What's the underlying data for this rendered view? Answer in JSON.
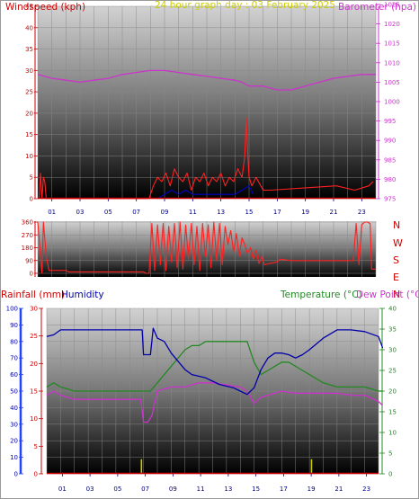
{
  "colors": {
    "wind": "#cc0000",
    "wind_gust": "#ff2020",
    "wind_avg": "#0000cc",
    "baro": "#cc33cc",
    "title": "#cccc00",
    "rain": "#cc0000",
    "humidity": "#0000aa",
    "temp": "#228822",
    "dew": "#cc33cc",
    "winddir": "#ff2020",
    "rain_bar": "#cccc00",
    "grid": "#888888",
    "axis_hum": "#2244ff"
  },
  "chart_data": [
    {
      "id": "wind_baro",
      "type": "line",
      "title": "24 hour graph day : 03 February 2025",
      "left_label": "Windspeed (kph)",
      "right_label": "Barometer (hpa)",
      "left_ticks": [
        "0",
        "5",
        "10",
        "15",
        "20",
        "25",
        "30",
        "35",
        "40",
        "45"
      ],
      "left_range": [
        0,
        45
      ],
      "right_ticks": [
        "975",
        "980",
        "985",
        "990",
        "995",
        "1000",
        "1005",
        "1010",
        "1015",
        "1020",
        "1025"
      ],
      "right_range": [
        975,
        1025
      ],
      "x_ticks": [
        "01",
        "03",
        "05",
        "07",
        "09",
        "11",
        "13",
        "15",
        "17",
        "19",
        "21",
        "23"
      ],
      "x_range": [
        0,
        24
      ],
      "grid": true,
      "series": [
        {
          "role": "barometer",
          "axis": "right",
          "x": [
            0,
            1,
            2,
            3,
            4,
            5,
            6,
            7,
            8,
            9,
            10,
            11,
            12,
            13,
            14,
            14.5,
            15,
            16,
            17,
            18,
            19,
            20,
            21,
            22,
            23,
            24
          ],
          "y": [
            1007,
            1006,
            1005.5,
            1005,
            1005.5,
            1006,
            1007,
            1007.5,
            1008,
            1008,
            1007.5,
            1007,
            1006.5,
            1006,
            1005.5,
            1005,
            1004,
            1004,
            1003,
            1003,
            1004,
            1005,
            1006,
            1006.5,
            1007,
            1007
          ]
        },
        {
          "role": "gust",
          "axis": "left",
          "x": [
            0.1,
            0.2,
            0.3,
            0.4,
            0.5,
            0.6,
            7.9,
            8.2,
            8.5,
            8.8,
            9.1,
            9.4,
            9.7,
            10,
            10.3,
            10.6,
            10.9,
            11.2,
            11.5,
            11.8,
            12.1,
            12.4,
            12.7,
            13,
            13.3,
            13.6,
            13.9,
            14.2,
            14.5,
            14.7,
            14.8,
            14.9,
            15.0,
            15.2,
            15.5,
            16,
            16.5,
            21.2,
            22.5,
            23.5,
            23.8
          ],
          "y": [
            0,
            6,
            0,
            5,
            4,
            0,
            0,
            3,
            5,
            4,
            6,
            3,
            7,
            5,
            4,
            6,
            2,
            5,
            4,
            6,
            3,
            5,
            4,
            6,
            3,
            5,
            4,
            7,
            5,
            10,
            19,
            11,
            5,
            3,
            5,
            2,
            2,
            3,
            2,
            3,
            4
          ]
        },
        {
          "role": "average",
          "axis": "left",
          "x": [
            8.5,
            9,
            9.5,
            10,
            10.5,
            11,
            14,
            14.5,
            15,
            15.3
          ],
          "y": [
            0,
            1,
            2,
            1,
            2,
            1,
            1,
            2,
            3,
            1
          ]
        }
      ]
    },
    {
      "id": "wind_dir",
      "type": "line",
      "left_ticks": [
        "0",
        "90",
        "180",
        "270",
        "360"
      ],
      "left_range": [
        0,
        360
      ],
      "direction_labels": [
        "N",
        "W",
        "S",
        "E",
        "N"
      ],
      "x_range": [
        0,
        24
      ],
      "grid": true,
      "series": [
        {
          "role": "direction",
          "x": [
            0,
            0.3,
            0.4,
            0.6,
            0.8,
            1,
            2,
            2.2,
            4,
            6,
            7,
            7.4,
            7.5,
            7.7,
            7.9,
            8.1,
            8.3,
            8.5,
            8.7,
            8.9,
            9.1,
            9.3,
            9.5,
            9.7,
            9.9,
            10.1,
            10.3,
            10.5,
            10.7,
            10.9,
            11.1,
            11.3,
            11.5,
            11.7,
            11.9,
            12.1,
            12.3,
            12.5,
            12.7,
            12.9,
            13.1,
            13.3,
            13.5,
            13.7,
            13.9,
            14.1,
            14.3,
            14.5,
            14.7,
            14.9,
            15.1,
            15.3,
            15.5,
            15.7,
            15.9,
            16.1,
            16.5,
            17,
            17.2,
            18,
            20,
            22,
            22.4,
            22.6,
            22.8,
            23,
            23.2,
            23.4,
            23.6,
            23.7,
            24
          ],
          "y": [
            360,
            0,
            360,
            120,
            20,
            20,
            20,
            10,
            10,
            10,
            10,
            10,
            10,
            0,
            0,
            350,
            20,
            340,
            60,
            350,
            20,
            330,
            80,
            350,
            40,
            360,
            30,
            340,
            100,
            350,
            60,
            330,
            20,
            350,
            120,
            340,
            40,
            360,
            90,
            350,
            60,
            330,
            200,
            300,
            150,
            280,
            120,
            250,
            200,
            140,
            180,
            100,
            160,
            70,
            120,
            60,
            70,
            80,
            100,
            90,
            90,
            90,
            90,
            350,
            60,
            340,
            360,
            360,
            350,
            30,
            30
          ]
        }
      ]
    },
    {
      "id": "rain_hum_temp",
      "type": "line",
      "left_label": "Rainfall (mm)",
      "hum_label": "Humidity",
      "right_label_temp": "Temperature (°C)",
      "right_label_dew": "Dew Point (°C)",
      "rain_ticks": [
        "0",
        "5",
        "10",
        "15",
        "20",
        "25",
        "30"
      ],
      "rain_range": [
        0,
        30
      ],
      "hum_ticks": [
        "0",
        "10",
        "20",
        "30",
        "40",
        "50",
        "60",
        "70",
        "80",
        "90",
        "100"
      ],
      "hum_range": [
        0,
        100
      ],
      "temp_ticks": [
        "0",
        "5",
        "10",
        "15",
        "20",
        "25",
        "30",
        "35",
        "40"
      ],
      "temp_range": [
        0,
        40
      ],
      "x_ticks": [
        "01",
        "03",
        "05",
        "07",
        "09",
        "11",
        "13",
        "15",
        "17",
        "19",
        "21",
        "23"
      ],
      "x_range": [
        0,
        24
      ],
      "grid": true,
      "series": [
        {
          "role": "humidity",
          "axis": "hum",
          "x": [
            0,
            0.5,
            1,
            2,
            3,
            4,
            5,
            6,
            6.9,
            7.0,
            7.5,
            7.7,
            8,
            8.5,
            9,
            9.5,
            10,
            10.5,
            11,
            11.5,
            12,
            12.5,
            13,
            13.5,
            14,
            14.5,
            15,
            15.5,
            16,
            16.5,
            17,
            17.5,
            18,
            18.5,
            19,
            20,
            21,
            22,
            23,
            24,
            24.3
          ],
          "y": [
            83,
            84,
            87,
            87,
            87,
            87,
            87,
            87,
            87,
            72,
            72,
            88,
            82,
            80,
            73,
            68,
            63,
            60,
            59,
            58,
            56,
            54,
            53,
            52,
            50,
            48,
            52,
            63,
            70,
            73,
            73,
            72,
            70,
            72,
            75,
            82,
            87,
            87,
            86,
            83,
            76
          ]
        },
        {
          "role": "temperature",
          "axis": "temp",
          "x": [
            0,
            0.5,
            1,
            2,
            3,
            4,
            5,
            6,
            7,
            7.5,
            8,
            8.5,
            9,
            9.5,
            10,
            10.5,
            11,
            11.5,
            12,
            13,
            14,
            14.5,
            15,
            15.5,
            16,
            16.5,
            17,
            17.5,
            18,
            18.5,
            19,
            20,
            21,
            22,
            23,
            24,
            24.3
          ],
          "y": [
            21,
            22,
            21,
            20,
            20,
            20,
            20,
            20,
            20,
            20,
            22,
            24,
            26,
            28,
            30,
            31,
            31,
            32,
            32,
            32,
            32,
            32,
            27,
            24,
            25,
            26,
            27,
            27,
            26,
            25,
            24,
            22,
            21,
            21,
            21,
            20,
            20
          ]
        },
        {
          "role": "dew_point",
          "axis": "temp",
          "x": [
            0,
            0.5,
            1,
            2,
            3,
            4,
            5,
            6,
            6.8,
            7,
            7.3,
            7.6,
            8,
            9,
            10,
            11,
            12,
            13,
            14,
            14.5,
            15,
            15.5,
            16,
            17,
            18,
            19,
            20,
            21,
            22,
            23,
            24,
            24.3
          ],
          "y": [
            19,
            20,
            19,
            18,
            18,
            18,
            18,
            18,
            18,
            12.5,
            12.5,
            14,
            20,
            21,
            21,
            22,
            22,
            21.5,
            21,
            20,
            17,
            18.5,
            19,
            20,
            19.5,
            19.5,
            19.5,
            19.5,
            19,
            19,
            17.5,
            16.5
          ]
        },
        {
          "role": "rain_event",
          "axis": "rain",
          "x": [
            6.85,
            19.15
          ],
          "y": [
            2,
            2
          ]
        }
      ]
    }
  ]
}
